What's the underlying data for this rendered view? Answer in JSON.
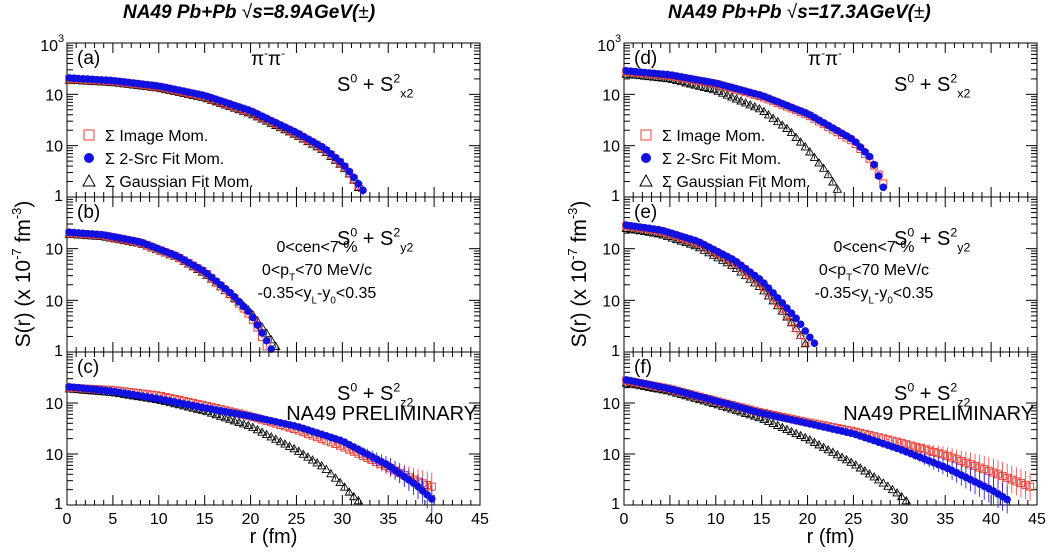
{
  "figure": {
    "titles": [
      {
        "pre": "NA49 Pb+Pb ",
        "sqrt": "√",
        "post": "s=8.9AGeV(",
        "pm": "±",
        "close": ")"
      },
      {
        "pre": "NA49 Pb+Pb ",
        "sqrt": "√",
        "post": "s=17.3AGeV(",
        "pm": "±",
        "close": ")"
      }
    ],
    "ylabel": {
      "a": "S(r) (x 10",
      "sup1": "-7",
      "b": " fm",
      "sup2": "-3",
      "c": ")"
    },
    "xlabel": "r (fm)",
    "pair": {
      "base": "π",
      "sup": "-"
    },
    "legend": [
      "Σ Image Mom.",
      "Σ 2-Src Fit Mom.",
      "Σ Gaussian Fit Mom."
    ],
    "cuts": {
      "cen": "0<cen<7 %",
      "pt": {
        "a": "0<p",
        "sub": "T",
        "b": "<70 MeV/c"
      },
      "y": {
        "a": "-0.35<y",
        "sub1": "L",
        "b": "-y",
        "sub2": "0",
        "c": "<0.35"
      }
    },
    "preliminary": "NA49 PRELIMINARY",
    "ytick_labels": {
      "top": "10",
      "top_exp": "3",
      "upper": "10",
      "mid": "10",
      "bottom": "1"
    },
    "xtick_labels": [
      "0",
      "5",
      "10",
      "15",
      "20",
      "25",
      "30",
      "35",
      "40",
      "45"
    ],
    "colors": {
      "image": "#e8413b",
      "two_src": "#1010e0",
      "gauss": "#000000"
    }
  },
  "chart_data": [
    {
      "type": "scatter",
      "panel": "(a)",
      "column": "8.9 AGeV",
      "component": {
        "base": "S",
        "sup": "0",
        "plus": " + ",
        "s2": "S",
        "s2sup": "2",
        "s2sub": "x2"
      },
      "show_pair": true,
      "show_legend": true,
      "x_range": [
        0,
        45
      ],
      "y_scale": "log",
      "y_range": [
        1,
        1000
      ],
      "xlabel": "r (fm)",
      "series": [
        {
          "name": "Σ Image Mom.",
          "marker": "open-square",
          "x": [
            0,
            5,
            10,
            15,
            20,
            25,
            28,
            30,
            31,
            32
          ],
          "y": [
            200,
            180,
            140,
            90,
            45,
            17,
            8.5,
            4.3,
            2.6,
            1.4
          ]
        },
        {
          "name": "Σ 2-Src Fit Mom.",
          "marker": "filled-circle",
          "x": [
            0,
            5,
            10,
            15,
            20,
            25,
            28,
            30,
            31,
            32.6
          ],
          "y": [
            210,
            185,
            145,
            95,
            48,
            18,
            9,
            4.5,
            2.8,
            1.1
          ]
        },
        {
          "name": "Σ Gaussian Fit Mom.",
          "marker": "open-triangle",
          "x": [
            0,
            5,
            10,
            15,
            20,
            25,
            28,
            30,
            31,
            32
          ],
          "y": [
            190,
            170,
            132,
            85,
            42,
            16,
            8,
            4,
            2.5,
            1.3
          ]
        }
      ]
    },
    {
      "type": "scatter",
      "panel": "(b)",
      "column": "8.9 AGeV",
      "component": {
        "base": "S",
        "sup": "0",
        "plus": " + ",
        "s2": "S",
        "s2sup": "2",
        "s2sub": "y2"
      },
      "show_cuts": true,
      "x_range": [
        0,
        45
      ],
      "y_scale": "log",
      "y_range": [
        1,
        1000
      ],
      "series": [
        {
          "name": "Σ Image Mom.",
          "marker": "open-square",
          "x": [
            0,
            4,
            8,
            12,
            15,
            18,
            20,
            21,
            21.5,
            22
          ],
          "y": [
            200,
            180,
            130,
            70,
            35,
            12,
            5,
            2.5,
            1.5,
            1.1
          ]
        },
        {
          "name": "Σ 2-Src Fit Mom.",
          "marker": "filled-circle",
          "x": [
            0,
            4,
            8,
            12,
            15,
            18,
            20,
            21,
            21.8,
            22.3
          ],
          "y": [
            210,
            185,
            135,
            72,
            36,
            13,
            5.5,
            2.8,
            1.6,
            1.1
          ]
        },
        {
          "name": "Σ Gaussian Fit Mom.",
          "marker": "open-triangle",
          "x": [
            0,
            4,
            8,
            12,
            15,
            18,
            20,
            21,
            22,
            23
          ],
          "y": [
            190,
            170,
            125,
            68,
            33,
            12,
            6,
            3.5,
            2,
            1.1
          ]
        }
      ]
    },
    {
      "type": "scatter",
      "panel": "(c)",
      "column": "8.9 AGeV",
      "component": {
        "base": "S",
        "sup": "0",
        "plus": " + ",
        "s2": "S",
        "s2sup": "2",
        "s2sub": "z2"
      },
      "show_prelim": true,
      "x_range": [
        0,
        45
      ],
      "y_scale": "log",
      "y_range": [
        1,
        1000
      ],
      "series": [
        {
          "name": "Σ Image Mom.",
          "marker": "open-square",
          "x": [
            0,
            5,
            10,
            15,
            20,
            25,
            30,
            35,
            38,
            40
          ],
          "y": [
            200,
            180,
            140,
            90,
            55,
            30,
            14,
            5.5,
            3,
            2.2
          ]
        },
        {
          "name": "Σ 2-Src Fit Mom.",
          "marker": "filled-circle",
          "x": [
            0,
            5,
            10,
            15,
            20,
            25,
            30,
            35,
            38,
            40
          ],
          "y": [
            210,
            170,
            120,
            80,
            55,
            35,
            18,
            6,
            2.5,
            1.2
          ]
        },
        {
          "name": "Σ Gaussian Fit Mom.",
          "marker": "open-triangle",
          "x": [
            0,
            5,
            10,
            15,
            20,
            25,
            28,
            30,
            31,
            32
          ],
          "y": [
            190,
            160,
            115,
            70,
            35,
            12,
            5.5,
            2.5,
            1.6,
            1.1
          ]
        }
      ]
    },
    {
      "type": "scatter",
      "panel": "(d)",
      "column": "17.3 AGeV",
      "component": {
        "base": "S",
        "sup": "0",
        "plus": " + ",
        "s2": "S",
        "s2sup": "2",
        "s2sub": "x2"
      },
      "show_pair": true,
      "show_legend": true,
      "x_range": [
        0,
        45
      ],
      "y_scale": "log",
      "y_range": [
        1,
        1000
      ],
      "series": [
        {
          "name": "Σ Image Mom.",
          "marker": "open-square",
          "x": [
            0,
            5,
            10,
            15,
            20,
            25,
            27,
            28.5
          ],
          "y": [
            280,
            230,
            160,
            90,
            40,
            12,
            5,
            1.5
          ]
        },
        {
          "name": "Σ 2-Src Fit Mom.",
          "marker": "filled-circle",
          "x": [
            0,
            5,
            10,
            15,
            20,
            25,
            27,
            28.5
          ],
          "y": [
            290,
            240,
            165,
            95,
            42,
            13,
            5.5,
            1.2
          ]
        },
        {
          "name": "Σ Gaussian Fit Mom.",
          "marker": "open-triangle",
          "x": [
            0,
            5,
            10,
            15,
            18,
            20,
            22,
            23.5
          ],
          "y": [
            250,
            200,
            120,
            50,
            20,
            8.5,
            3.2,
            1.2
          ]
        }
      ]
    },
    {
      "type": "scatter",
      "panel": "(e)",
      "column": "17.3 AGeV",
      "component": {
        "base": "S",
        "sup": "0",
        "plus": " + ",
        "s2": "S",
        "s2sup": "2",
        "s2sub": "y2"
      },
      "show_cuts": true,
      "x_range": [
        0,
        45
      ],
      "y_scale": "log",
      "y_range": [
        1,
        1000
      ],
      "series": [
        {
          "name": "Σ Image Mom.",
          "marker": "open-square",
          "x": [
            0,
            4,
            8,
            12,
            15,
            17,
            19,
            20
          ],
          "y": [
            280,
            220,
            130,
            55,
            20,
            8,
            2.5,
            1.3
          ]
        },
        {
          "name": "Σ 2-Src Fit Mom.",
          "marker": "filled-circle",
          "x": [
            0,
            4,
            8,
            12,
            15,
            17,
            19,
            20,
            21
          ],
          "y": [
            290,
            230,
            140,
            60,
            24,
            10,
            4,
            2.2,
            1.3
          ]
        },
        {
          "name": "Σ Gaussian Fit Mom.",
          "marker": "open-triangle",
          "x": [
            0,
            4,
            8,
            12,
            15,
            17,
            19,
            20
          ],
          "y": [
            250,
            190,
            110,
            45,
            17,
            7,
            2.5,
            1.2
          ]
        }
      ]
    },
    {
      "type": "scatter",
      "panel": "(f)",
      "column": "17.3 AGeV",
      "component": {
        "base": "S",
        "sup": "0",
        "plus": " + ",
        "s2": "S",
        "s2sup": "2",
        "s2sub": "z2"
      },
      "show_prelim": true,
      "x_range": [
        0,
        45
      ],
      "y_scale": "log",
      "y_range": [
        1,
        1000
      ],
      "series": [
        {
          "name": "Σ Image Mom.",
          "marker": "open-square",
          "x": [
            0,
            5,
            10,
            15,
            20,
            25,
            30,
            35,
            40,
            44.5
          ],
          "y": [
            280,
            190,
            110,
            65,
            42,
            28,
            17,
            9.5,
            4.5,
            2.2
          ]
        },
        {
          "name": "Σ 2-Src Fit Mom.",
          "marker": "filled-circle",
          "x": [
            0,
            5,
            10,
            15,
            20,
            25,
            30,
            35,
            40,
            42
          ],
          "y": [
            290,
            190,
            110,
            63,
            40,
            25,
            12.5,
            5.5,
            2,
            1.2
          ]
        },
        {
          "name": "Σ Gaussian Fit Mom.",
          "marker": "open-triangle",
          "x": [
            0,
            5,
            10,
            15,
            20,
            25,
            28,
            30,
            31
          ],
          "y": [
            250,
            170,
            95,
            50,
            20,
            6.5,
            2.9,
            1.6,
            1.1
          ]
        }
      ]
    }
  ]
}
